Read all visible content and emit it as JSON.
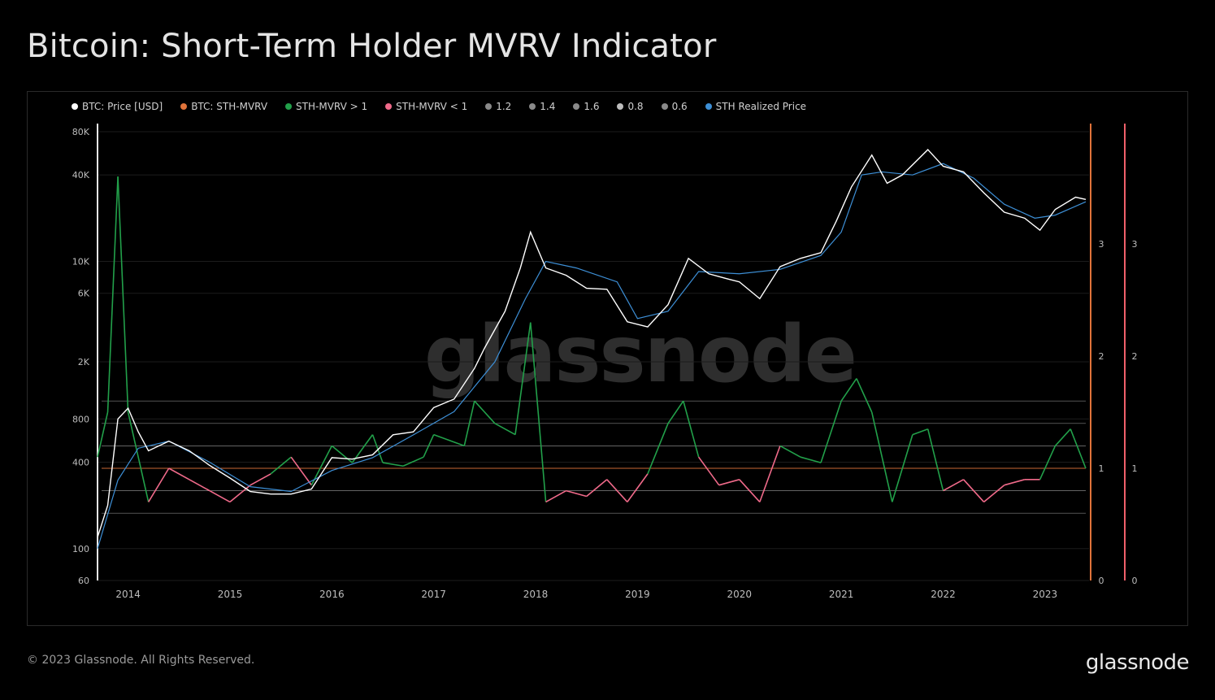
{
  "page": {
    "title": "Bitcoin: Short-Term Holder MVRV Indicator",
    "footer": "© 2023 Glassnode. All Rights Reserved.",
    "brand": "glassnode",
    "watermark": "glassnode"
  },
  "legend": [
    {
      "label": "BTC: Price [USD]",
      "color": "#ffffff"
    },
    {
      "label": "BTC: STH-MVRV",
      "color": "#e0733a"
    },
    {
      "label": "STH-MVRV > 1",
      "color": "#22a04a"
    },
    {
      "label": "STH-MVRV < 1",
      "color": "#f06a8a"
    },
    {
      "label": "1.2",
      "color": "#8a8a8a"
    },
    {
      "label": "1.4",
      "color": "#8a8a8a"
    },
    {
      "label": "1.6",
      "color": "#8a8a8a"
    },
    {
      "label": "0.8",
      "color": "#bdbdbd"
    },
    {
      "label": "0.6",
      "color": "#8a8a8a"
    },
    {
      "label": "STH Realized Price",
      "color": "#3d8fd6"
    }
  ],
  "chart_data": {
    "type": "line",
    "x_ticks": [
      "2014",
      "2015",
      "2016",
      "2017",
      "2018",
      "2019",
      "2020",
      "2021",
      "2022",
      "2023"
    ],
    "y_left_scale": "log",
    "y_left_ticks": [
      "80K",
      "40K",
      "10K",
      "6K",
      "2K",
      "800",
      "400",
      "100",
      "60"
    ],
    "y_left_tick_values": [
      80000,
      40000,
      10000,
      6000,
      2000,
      800,
      400,
      100,
      60
    ],
    "y_left_range": [
      60,
      80000
    ],
    "y_right_ticks": [
      "3",
      "2",
      "1",
      "0"
    ],
    "y_right_tick_values": [
      3,
      2,
      1,
      0
    ],
    "y_right_range": [
      0,
      4
    ],
    "threshold_lines": [
      1.6,
      1.4,
      1.2,
      1.0,
      0.8,
      0.6
    ],
    "series": [
      {
        "name": "BTC: Price [USD]",
        "color": "#ffffff",
        "x": [
          2013.7,
          2013.8,
          2013.9,
          2014.0,
          2014.1,
          2014.2,
          2014.4,
          2014.6,
          2014.8,
          2015.0,
          2015.2,
          2015.4,
          2015.6,
          2015.8,
          2016.0,
          2016.2,
          2016.4,
          2016.6,
          2016.8,
          2017.0,
          2017.2,
          2017.4,
          2017.5,
          2017.7,
          2017.85,
          2017.95,
          2018.1,
          2018.3,
          2018.5,
          2018.7,
          2018.9,
          2019.1,
          2019.3,
          2019.5,
          2019.7,
          2019.9,
          2020.0,
          2020.2,
          2020.4,
          2020.6,
          2020.8,
          2020.95,
          2021.1,
          2021.3,
          2021.45,
          2021.6,
          2021.85,
          2022.0,
          2022.2,
          2022.4,
          2022.6,
          2022.8,
          2022.95,
          2023.1,
          2023.3,
          2023.4
        ],
        "values": [
          120,
          200,
          800,
          950,
          650,
          480,
          560,
          480,
          380,
          310,
          250,
          240,
          240,
          260,
          430,
          420,
          450,
          620,
          650,
          960,
          1100,
          1800,
          2500,
          4500,
          9000,
          16000,
          9000,
          8000,
          6500,
          6400,
          3800,
          3500,
          5000,
          10500,
          8200,
          7500,
          7200,
          5500,
          9200,
          10500,
          11500,
          19000,
          33000,
          55000,
          35000,
          40000,
          60000,
          46000,
          42000,
          30000,
          22000,
          20000,
          16500,
          23000,
          28000,
          27000
        ]
      },
      {
        "name": "BTC: STH-MVRV",
        "color": "#22a04a",
        "x": [
          2013.7,
          2013.8,
          2013.9,
          2014.0,
          2014.2,
          2014.4,
          2014.6,
          2014.8,
          2015.0,
          2015.2,
          2015.4,
          2015.6,
          2015.8,
          2016.0,
          2016.2,
          2016.4,
          2016.5,
          2016.7,
          2016.9,
          2017.0,
          2017.3,
          2017.4,
          2017.6,
          2017.8,
          2017.95,
          2018.1,
          2018.3,
          2018.5,
          2018.7,
          2018.9,
          2019.1,
          2019.3,
          2019.45,
          2019.6,
          2019.8,
          2020.0,
          2020.2,
          2020.4,
          2020.6,
          2020.8,
          2021.0,
          2021.15,
          2021.3,
          2021.5,
          2021.7,
          2021.85,
          2022.0,
          2022.2,
          2022.4,
          2022.6,
          2022.8,
          2022.95,
          2023.1,
          2023.25,
          2023.4
        ],
        "values": [
          1.1,
          1.5,
          3.6,
          1.5,
          0.7,
          1.0,
          0.9,
          0.8,
          0.7,
          0.85,
          0.95,
          1.1,
          0.85,
          1.2,
          1.05,
          1.3,
          1.05,
          1.02,
          1.1,
          1.3,
          1.2,
          1.6,
          1.4,
          1.3,
          2.3,
          0.7,
          0.8,
          0.75,
          0.9,
          0.7,
          0.95,
          1.4,
          1.6,
          1.1,
          0.85,
          0.9,
          0.7,
          1.2,
          1.1,
          1.05,
          1.6,
          1.8,
          1.5,
          0.7,
          1.3,
          1.35,
          0.8,
          0.9,
          0.7,
          0.85,
          0.9,
          0.9,
          1.2,
          1.35,
          1.0
        ]
      },
      {
        "name": "STH Realized Price",
        "color": "#3d8fd6",
        "x": [
          2013.7,
          2013.9,
          2014.1,
          2014.4,
          2014.8,
          2015.2,
          2015.6,
          2016.0,
          2016.4,
          2016.8,
          2017.2,
          2017.6,
          2017.9,
          2018.1,
          2018.4,
          2018.8,
          2019.0,
          2019.3,
          2019.6,
          2020.0,
          2020.4,
          2020.8,
          2021.0,
          2021.2,
          2021.4,
          2021.7,
          2022.0,
          2022.3,
          2022.6,
          2022.9,
          2023.1,
          2023.4
        ],
        "values": [
          100,
          300,
          500,
          560,
          400,
          270,
          250,
          350,
          430,
          620,
          900,
          2000,
          5500,
          10000,
          9000,
          7200,
          4000,
          4500,
          8500,
          8200,
          8800,
          11000,
          16000,
          40000,
          42000,
          40000,
          48000,
          38000,
          25000,
          20000,
          21000,
          26000
        ]
      }
    ]
  }
}
